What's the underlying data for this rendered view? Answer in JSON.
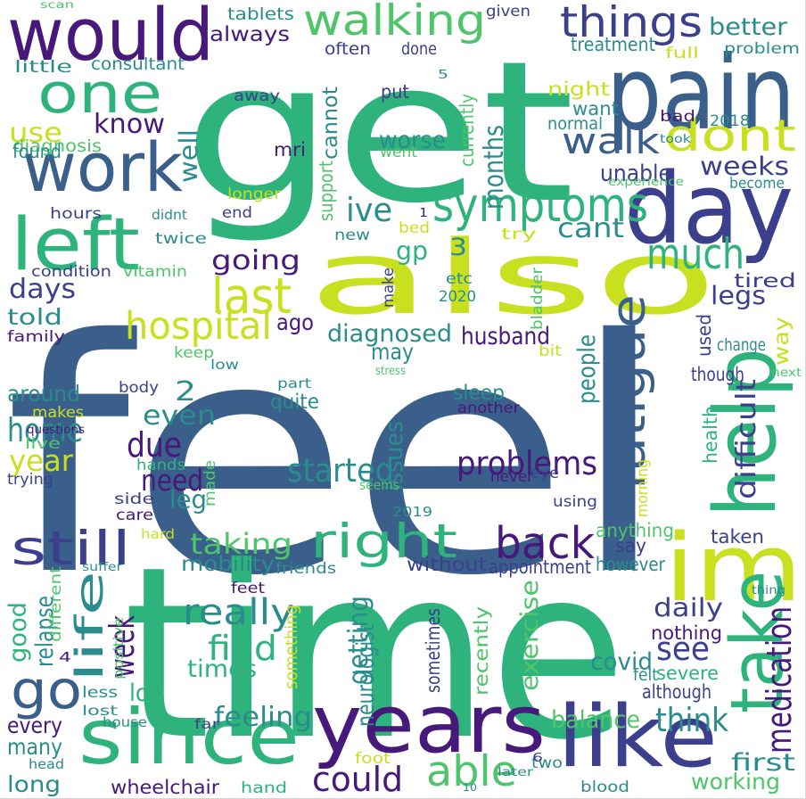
{
  "palette": {
    "navy": "#3a5f8a",
    "purple": "#46197a",
    "indigo": "#3b3f8c",
    "teal": "#2a8c8c",
    "green": "#2eb37c",
    "mint": "#4fc46a",
    "lime": "#9fd63f",
    "yellow": "#c8e020",
    "blue": "#2c7fb0"
  },
  "words": [
    {
      "text": "feel",
      "color": "navy"
    },
    {
      "text": "get",
      "color": "green"
    },
    {
      "text": "time",
      "color": "green"
    },
    {
      "text": "also",
      "color": "yellow"
    },
    {
      "text": "years",
      "color": "purple"
    },
    {
      "text": "since",
      "color": "green"
    },
    {
      "text": "like",
      "color": "indigo"
    },
    {
      "text": "day",
      "color": "indigo"
    },
    {
      "text": "pain",
      "color": "navy"
    },
    {
      "text": "would",
      "color": "purple"
    },
    {
      "text": "work",
      "color": "navy"
    },
    {
      "text": "one",
      "color": "green"
    },
    {
      "text": "left",
      "color": "green"
    },
    {
      "text": "im",
      "color": "yellow"
    },
    {
      "text": "help",
      "color": "green"
    },
    {
      "text": "still",
      "color": "indigo"
    },
    {
      "text": "right",
      "color": "green"
    },
    {
      "text": "go",
      "color": "navy"
    },
    {
      "text": "symptoms",
      "color": "green"
    },
    {
      "text": "walking",
      "color": "mint"
    },
    {
      "text": "things",
      "color": "indigo"
    },
    {
      "text": "dont",
      "color": "yellow"
    },
    {
      "text": "walk",
      "color": "navy"
    },
    {
      "text": "last",
      "color": "yellow"
    },
    {
      "text": "fatigue",
      "color": "navy"
    },
    {
      "text": "back",
      "color": "purple"
    },
    {
      "text": "take",
      "color": "green"
    },
    {
      "text": "much",
      "color": "green"
    },
    {
      "text": "life",
      "color": "teal"
    },
    {
      "text": "hospital",
      "color": "yellow"
    },
    {
      "text": "able",
      "color": "mint"
    },
    {
      "text": "could",
      "color": "purple"
    },
    {
      "text": "really",
      "color": "teal"
    },
    {
      "text": "started",
      "color": "teal"
    },
    {
      "text": "problems",
      "color": "purple"
    },
    {
      "text": "feeling",
      "color": "teal"
    },
    {
      "text": "home",
      "color": "teal"
    },
    {
      "text": "due",
      "color": "purple"
    },
    {
      "text": "need",
      "color": "purple"
    },
    {
      "text": "even",
      "color": "teal"
    },
    {
      "text": "year",
      "color": "yellow"
    },
    {
      "text": "going",
      "color": "purple"
    },
    {
      "text": "find",
      "color": "green"
    },
    {
      "text": "times",
      "color": "green"
    },
    {
      "text": "week",
      "color": "purple"
    },
    {
      "text": "see",
      "color": "indigo"
    },
    {
      "text": "think",
      "color": "teal"
    },
    {
      "text": "lot",
      "color": "green"
    },
    {
      "text": "difficult",
      "color": "indigo"
    },
    {
      "text": "medication",
      "color": "purple"
    },
    {
      "text": "getting",
      "color": "teal"
    },
    {
      "text": "ive",
      "color": "teal"
    },
    {
      "text": "cant",
      "color": "teal"
    },
    {
      "text": "weeks",
      "color": "indigo"
    },
    {
      "text": "days",
      "color": "indigo"
    },
    {
      "text": "know",
      "color": "purple"
    },
    {
      "text": "use",
      "color": "yellow"
    },
    {
      "text": "well",
      "color": "teal"
    },
    {
      "text": "months",
      "color": "teal"
    },
    {
      "text": "legs",
      "color": "indigo"
    },
    {
      "text": "diagnosed",
      "color": "teal"
    },
    {
      "text": "taking",
      "color": "mint"
    },
    {
      "text": "leg",
      "color": "teal"
    },
    {
      "text": "people",
      "color": "teal"
    },
    {
      "text": "husband",
      "color": "purple"
    },
    {
      "text": "worse",
      "color": "teal"
    },
    {
      "text": "better",
      "color": "teal"
    },
    {
      "text": "unable",
      "color": "indigo"
    },
    {
      "text": "daily",
      "color": "indigo"
    },
    {
      "text": "first",
      "color": "teal"
    },
    {
      "text": "balance",
      "color": "mint"
    },
    {
      "text": "covid",
      "color": "teal"
    },
    {
      "text": "exercise",
      "color": "mint"
    },
    {
      "text": "may",
      "color": "teal"
    },
    {
      "text": "around",
      "color": "teal"
    },
    {
      "text": "told",
      "color": "teal"
    },
    {
      "text": "every",
      "color": "purple"
    },
    {
      "text": "many",
      "color": "teal"
    },
    {
      "text": "long",
      "color": "teal"
    },
    {
      "text": "good",
      "color": "green"
    },
    {
      "text": "relapse",
      "color": "teal"
    },
    {
      "text": "wheelchair",
      "color": "purple"
    },
    {
      "text": "working",
      "color": "mint"
    },
    {
      "text": "mobility",
      "color": "teal"
    },
    {
      "text": "always",
      "color": "purple"
    },
    {
      "text": "ago",
      "color": "purple"
    },
    {
      "text": "gp",
      "color": "green"
    },
    {
      "text": "issues",
      "color": "teal"
    },
    {
      "text": "neurologist",
      "color": "teal"
    },
    {
      "text": "sleep",
      "color": "teal"
    },
    {
      "text": "quite",
      "color": "teal"
    },
    {
      "text": "without",
      "color": "indigo"
    },
    {
      "text": "however",
      "color": "teal"
    },
    {
      "text": "anything",
      "color": "mint"
    },
    {
      "text": "appointment",
      "color": "indigo"
    },
    {
      "text": "nothing",
      "color": "purple"
    },
    {
      "text": "although",
      "color": "indigo"
    },
    {
      "text": "severe",
      "color": "green"
    },
    {
      "text": "felt",
      "color": "teal"
    },
    {
      "text": "taken",
      "color": "indigo"
    },
    {
      "text": "say",
      "color": "indigo"
    },
    {
      "text": "tired",
      "color": "indigo"
    },
    {
      "text": "way",
      "color": "yellow"
    },
    {
      "text": "used",
      "color": "indigo"
    },
    {
      "text": "health",
      "color": "green"
    },
    {
      "text": "though",
      "color": "indigo"
    },
    {
      "text": "change",
      "color": "teal"
    },
    {
      "text": "treatment",
      "color": "teal"
    },
    {
      "text": "night",
      "color": "yellow"
    },
    {
      "text": "want",
      "color": "teal"
    },
    {
      "text": "normal",
      "color": "teal"
    },
    {
      "text": "currently",
      "color": "mint"
    },
    {
      "text": "put",
      "color": "indigo"
    },
    {
      "text": "often",
      "color": "indigo"
    },
    {
      "text": "done",
      "color": "indigo"
    },
    {
      "text": "mri",
      "color": "purple"
    },
    {
      "text": "support",
      "color": "mint"
    },
    {
      "text": "cannot",
      "color": "teal"
    },
    {
      "text": "diagnosis",
      "color": "mint"
    },
    {
      "text": "found",
      "color": "teal"
    },
    {
      "text": "consultant",
      "color": "teal"
    },
    {
      "text": "little",
      "color": "teal"
    },
    {
      "text": "tablets",
      "color": "teal"
    },
    {
      "text": "given",
      "color": "indigo"
    },
    {
      "text": "full",
      "color": "yellow"
    },
    {
      "text": "problem",
      "color": "teal"
    },
    {
      "text": "away",
      "color": "indigo"
    },
    {
      "text": "bad",
      "color": "purple"
    },
    {
      "text": "2018",
      "color": "teal"
    },
    {
      "text": "took",
      "color": "teal"
    },
    {
      "text": "went",
      "color": "mint"
    },
    {
      "text": "experience",
      "color": "mint"
    },
    {
      "text": "become",
      "color": "teal"
    },
    {
      "text": "longer",
      "color": "yellow"
    },
    {
      "text": "end",
      "color": "indigo"
    },
    {
      "text": "hours",
      "color": "indigo"
    },
    {
      "text": "didnt",
      "color": "teal"
    },
    {
      "text": "twice",
      "color": "teal"
    },
    {
      "text": "condition",
      "color": "indigo"
    },
    {
      "text": "vitamin",
      "color": "mint"
    },
    {
      "text": "family",
      "color": "purple"
    },
    {
      "text": "keep",
      "color": "mint"
    },
    {
      "text": "low",
      "color": "teal"
    },
    {
      "text": "stress",
      "color": "mint"
    },
    {
      "text": "part",
      "color": "teal"
    },
    {
      "text": "body",
      "color": "indigo"
    },
    {
      "text": "makes",
      "color": "yellow"
    },
    {
      "text": "questions",
      "color": "purple"
    },
    {
      "text": "live",
      "color": "mint"
    },
    {
      "text": "hands",
      "color": "green"
    },
    {
      "text": "made",
      "color": "mint"
    },
    {
      "text": "trying",
      "color": "indigo"
    },
    {
      "text": "side",
      "color": "indigo"
    },
    {
      "text": "care",
      "color": "purple"
    },
    {
      "text": "seems",
      "color": "mint"
    },
    {
      "text": "never",
      "color": "purple"
    },
    {
      "text": "eye",
      "color": "indigo"
    },
    {
      "text": "using",
      "color": "indigo"
    },
    {
      "text": "morning",
      "color": "yellow"
    },
    {
      "text": "2019",
      "color": "teal"
    },
    {
      "text": "hard",
      "color": "yellow"
    },
    {
      "text": "suffer",
      "color": "teal"
    },
    {
      "text": "different",
      "color": "mint"
    },
    {
      "text": "friends",
      "color": "teal"
    },
    {
      "text": "feet",
      "color": "purple"
    },
    {
      "text": "something",
      "color": "yellow"
    },
    {
      "text": "positive",
      "color": "mint"
    },
    {
      "text": "sometimes",
      "color": "indigo"
    },
    {
      "text": "recently",
      "color": "mint"
    },
    {
      "text": "less",
      "color": "teal"
    },
    {
      "text": "lost",
      "color": "teal"
    },
    {
      "text": "house",
      "color": "teal"
    },
    {
      "text": "said",
      "color": "green"
    },
    {
      "text": "far",
      "color": "indigo"
    },
    {
      "text": "foot",
      "color": "yellow"
    },
    {
      "text": "two",
      "color": "teal"
    },
    {
      "text": "head",
      "color": "teal"
    },
    {
      "text": "hand",
      "color": "green"
    },
    {
      "text": "later",
      "color": "teal"
    },
    {
      "text": "blood",
      "color": "teal"
    },
    {
      "text": "10",
      "color": "teal"
    },
    {
      "text": "thing",
      "color": "teal"
    },
    {
      "text": "next",
      "color": "mint"
    },
    {
      "text": "bit",
      "color": "yellow"
    },
    {
      "text": "another",
      "color": "purple"
    },
    {
      "text": "bladder",
      "color": "mint"
    },
    {
      "text": "make",
      "color": "indigo"
    },
    {
      "text": "2020",
      "color": "teal"
    },
    {
      "text": "etc",
      "color": "teal"
    },
    {
      "text": "try",
      "color": "yellow"
    },
    {
      "text": "bed",
      "color": "yellow"
    },
    {
      "text": "new",
      "color": "teal"
    },
    {
      "text": "scan",
      "color": "mint"
    },
    {
      "text": "2",
      "color": "teal"
    },
    {
      "text": "3",
      "color": "teal"
    },
    {
      "text": "4",
      "color": "purple"
    },
    {
      "text": "5",
      "color": "teal"
    },
    {
      "text": "6",
      "color": "indigo"
    },
    {
      "text": "1",
      "color": "purple"
    }
  ]
}
